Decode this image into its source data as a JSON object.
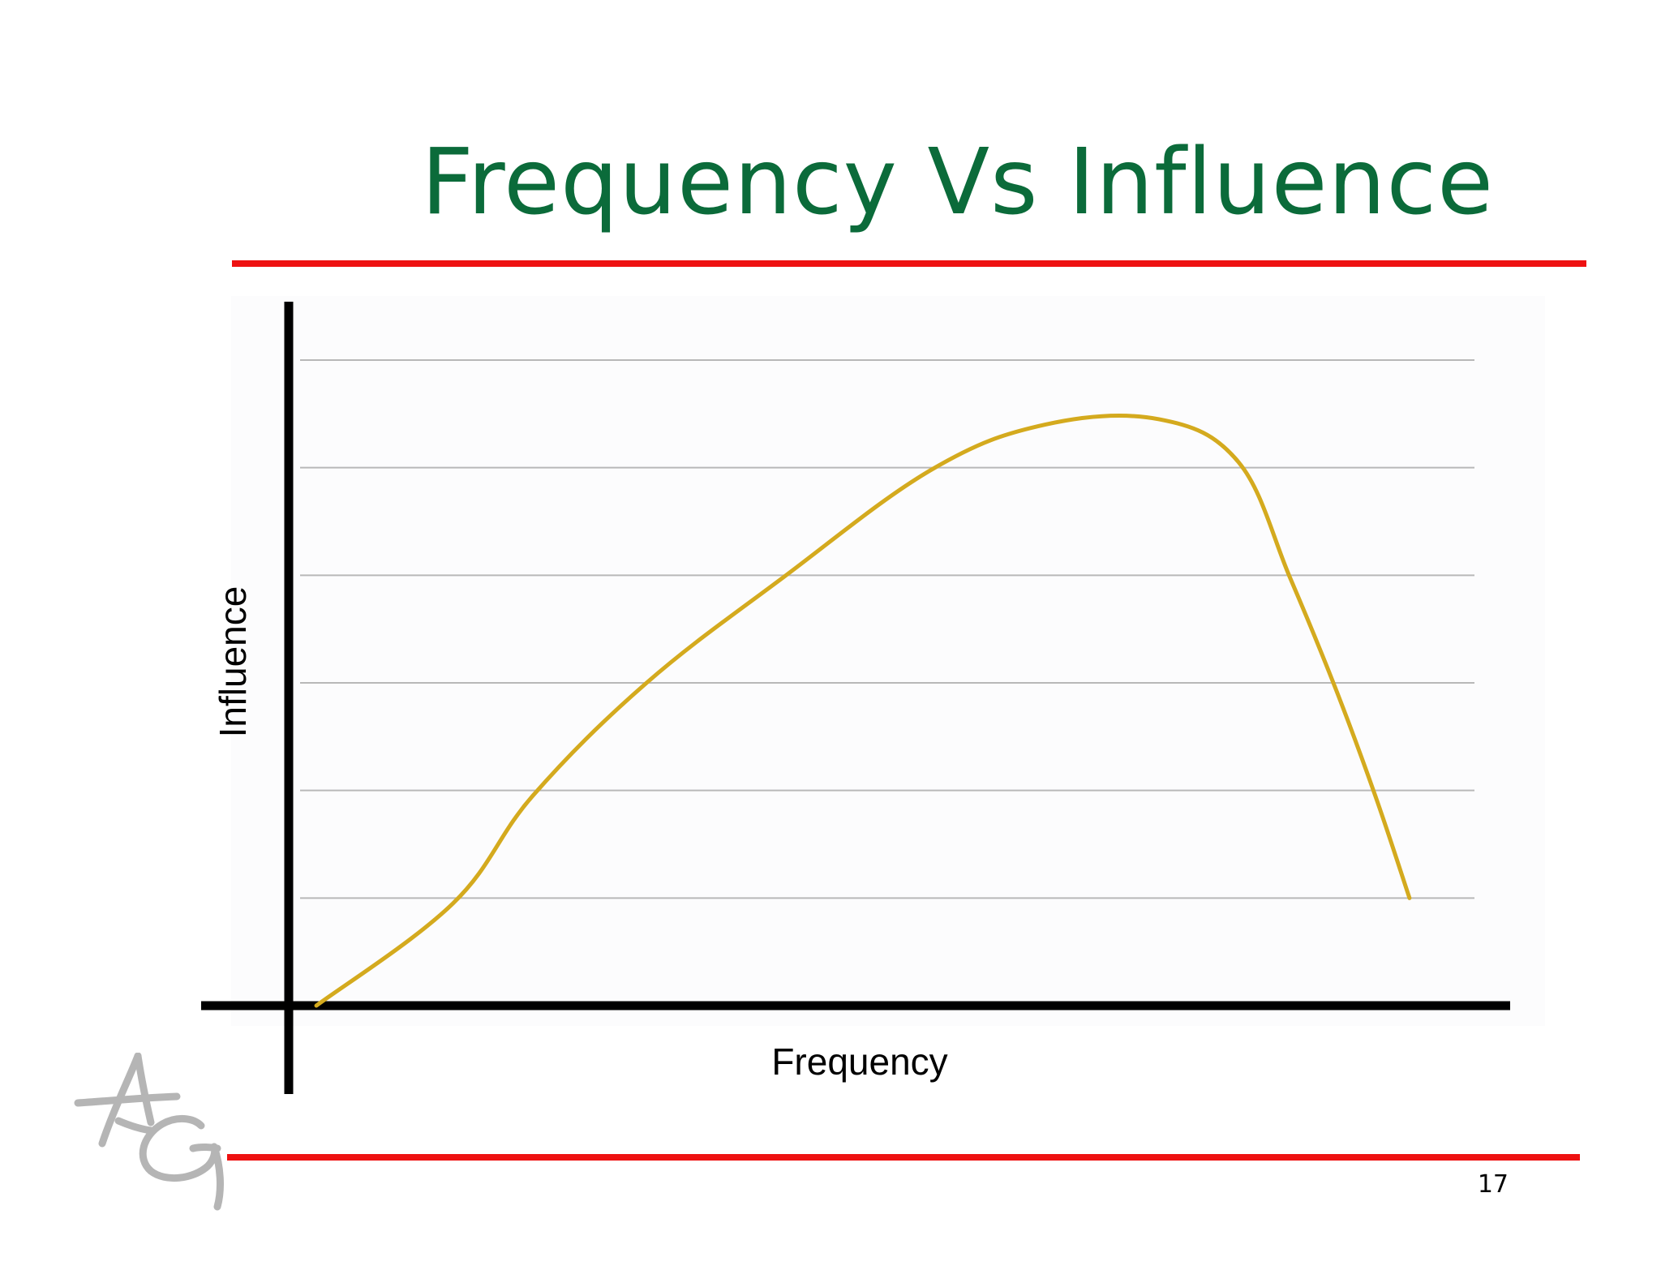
{
  "slide": {
    "title": "Frequency Vs Influence",
    "page_number": "17"
  },
  "colors": {
    "title": "#0b6b3a",
    "rule": "#ee1111",
    "curve": "#d4aa1e",
    "axis": "#000000",
    "grid": "#b8b8b8",
    "logo": "#b5b5b5"
  },
  "logo": {
    "name": "AG monogram",
    "text": "AG"
  },
  "chart_data": {
    "type": "line",
    "title": "",
    "xlabel": "Frequency",
    "ylabel": "Influence",
    "xlim": [
      0,
      10
    ],
    "ylim": [
      0,
      6
    ],
    "grid": "horizontal",
    "gridlines": [
      1,
      2,
      3,
      4,
      5,
      6
    ],
    "tick_labels": "none",
    "series": [
      {
        "values": [
          {
            "x": 0.1,
            "y": 0.0
          },
          {
            "x": 1.3,
            "y": 0.95
          },
          {
            "x": 2.0,
            "y": 1.95
          },
          {
            "x": 3.0,
            "y": 3.0
          },
          {
            "x": 4.2,
            "y": 3.98
          },
          {
            "x": 5.5,
            "y": 4.98
          },
          {
            "x": 6.5,
            "y": 5.4
          },
          {
            "x": 7.5,
            "y": 5.45
          },
          {
            "x": 8.2,
            "y": 5.05
          },
          {
            "x": 8.65,
            "y": 3.98
          },
          {
            "x": 9.05,
            "y": 2.95
          },
          {
            "x": 9.4,
            "y": 1.95
          },
          {
            "x": 9.7,
            "y": 1.0
          }
        ]
      }
    ]
  }
}
